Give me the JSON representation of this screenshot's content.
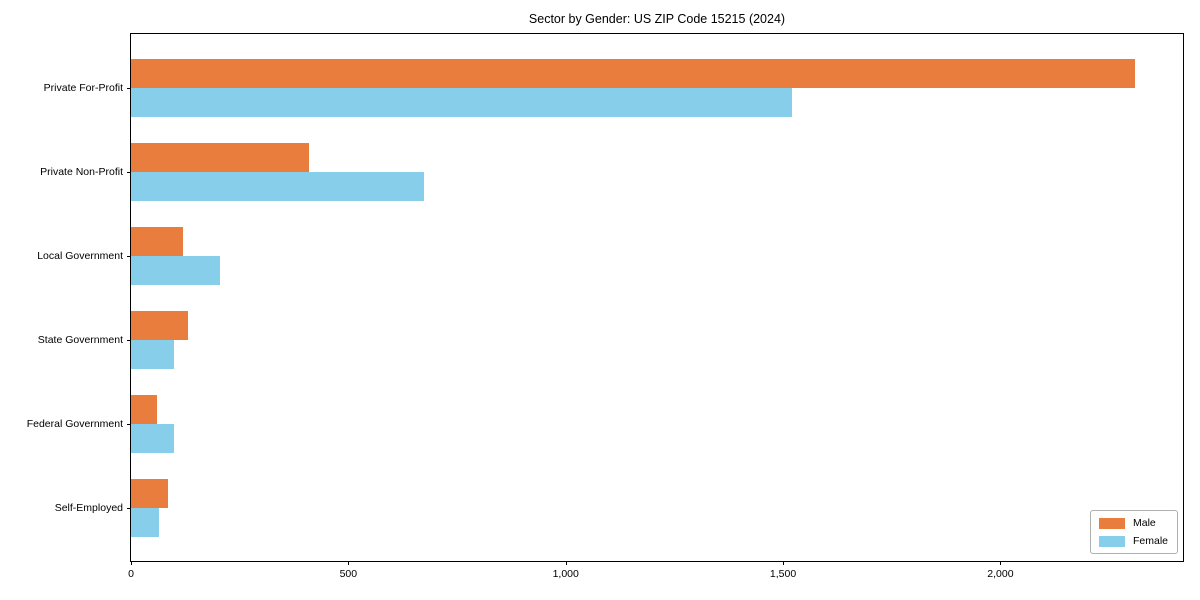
{
  "title": "Sector by Gender: US ZIP Code 15215 (2024)",
  "colors": {
    "male": "#e87d3e",
    "female": "#87ceeb",
    "axis": "#000000",
    "legend_border": "#b0b0b0",
    "background": "#ffffff"
  },
  "legend": {
    "position": "lower right",
    "items": [
      {
        "label": "Male",
        "color": "#e87d3e"
      },
      {
        "label": "Female",
        "color": "#87ceeb"
      }
    ]
  },
  "chart_data": {
    "type": "bar",
    "orientation": "horizontal",
    "title": "Sector by Gender: US ZIP Code 15215 (2024)",
    "categories": [
      "Private For-Profit",
      "Private Non-Profit",
      "Local Government",
      "State Government",
      "Federal Government",
      "Self-Employed"
    ],
    "series": [
      {
        "name": "Male",
        "color": "#e87d3e",
        "values": [
          2310,
          410,
          120,
          130,
          60,
          85
        ]
      },
      {
        "name": "Female",
        "color": "#87ceeb",
        "values": [
          1520,
          675,
          205,
          100,
          100,
          65
        ]
      }
    ],
    "xlabel": "",
    "ylabel": "",
    "xlim": [
      0,
      2420
    ],
    "xticks": [
      0,
      500,
      1000,
      1500,
      2000
    ],
    "xtick_labels": [
      "0",
      "500",
      "1,000",
      "1,500",
      "2,000"
    ],
    "grid": false,
    "legend_position": "lower right"
  }
}
